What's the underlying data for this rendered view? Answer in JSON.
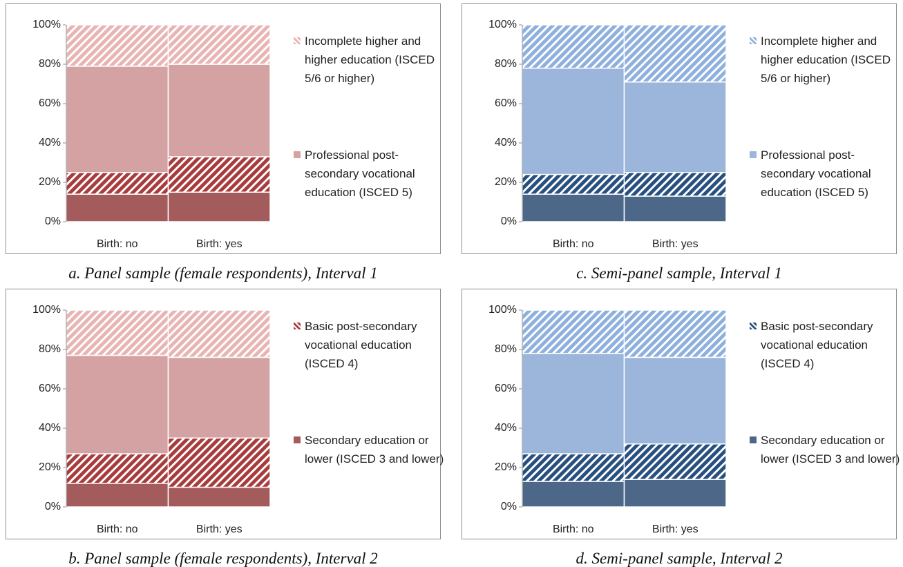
{
  "chart_data": [
    {
      "type": "bar",
      "stacked": true,
      "caption": "a. Panel sample (female respondents), Interval 1",
      "categories": [
        "Birth: no",
        "Birth: yes"
      ],
      "ylim": [
        0,
        100
      ],
      "yticks": [
        {
          "value": 0,
          "label": "0%"
        },
        {
          "value": 20,
          "label": "20%"
        },
        {
          "value": 40,
          "label": "40%"
        },
        {
          "value": 60,
          "label": "60%"
        },
        {
          "value": 80,
          "label": "80%"
        },
        {
          "value": 100,
          "label": "100%"
        }
      ],
      "grid": false,
      "series": [
        {
          "color": "#a35b5b",
          "hatch": false,
          "values": [
            14,
            15
          ]
        },
        {
          "color": "#a83c3c",
          "hatch": true,
          "values": [
            11,
            18
          ]
        },
        {
          "name": "Professional post-secondary vocational education (ISCED 5)",
          "color": "#d4a2a2",
          "hatch": false,
          "values": [
            54,
            47
          ]
        },
        {
          "name": "Incomplete higher and higher education (ISCED 5/6 or higher)",
          "color": "#e8b4b4",
          "hatch": true,
          "values": [
            21,
            20
          ]
        }
      ]
    },
    {
      "type": "bar",
      "stacked": true,
      "caption": "b. Panel sample (female respondents), Interval 2",
      "categories": [
        "Birth: no",
        "Birth: yes"
      ],
      "ylim": [
        0,
        100
      ],
      "yticks": [
        {
          "value": 0,
          "label": "0%"
        },
        {
          "value": 20,
          "label": "20%"
        },
        {
          "value": 40,
          "label": "40%"
        },
        {
          "value": 60,
          "label": "60%"
        },
        {
          "value": 80,
          "label": "80%"
        },
        {
          "value": 100,
          "label": "100%"
        }
      ],
      "grid": false,
      "series": [
        {
          "name": "Secondary education or lower (ISCED 3 and lower)",
          "color": "#a35b5b",
          "hatch": false,
          "values": [
            12,
            10
          ]
        },
        {
          "name": "Basic post-secondary vocational education (ISCED 4)",
          "color": "#a83c3c",
          "hatch": true,
          "values": [
            15,
            25
          ]
        },
        {
          "color": "#d4a2a2",
          "hatch": false,
          "values": [
            50,
            41
          ]
        },
        {
          "color": "#e8b4b4",
          "hatch": true,
          "values": [
            23,
            24
          ]
        }
      ]
    },
    {
      "type": "bar",
      "stacked": true,
      "caption": "c. Semi-panel sample, Interval 1",
      "categories": [
        "Birth: no",
        "Birth: yes"
      ],
      "ylim": [
        0,
        100
      ],
      "yticks": [
        {
          "value": 0,
          "label": "0%"
        },
        {
          "value": 20,
          "label": "20%"
        },
        {
          "value": 40,
          "label": "40%"
        },
        {
          "value": 60,
          "label": "60%"
        },
        {
          "value": 80,
          "label": "80%"
        },
        {
          "value": 100,
          "label": "100%"
        }
      ],
      "grid": false,
      "series": [
        {
          "color": "#4d6789",
          "hatch": false,
          "values": [
            14,
            13
          ]
        },
        {
          "color": "#274f80",
          "hatch": true,
          "values": [
            10,
            12
          ]
        },
        {
          "name": "Professional post-secondary vocational education (ISCED 5)",
          "color": "#9bb6da",
          "hatch": false,
          "values": [
            54,
            46
          ]
        },
        {
          "name": "Incomplete higher and higher education (ISCED 5/6 or higher)",
          "color": "#8eb0de",
          "hatch": true,
          "values": [
            22,
            29
          ]
        }
      ]
    },
    {
      "type": "bar",
      "stacked": true,
      "caption": "d. Semi-panel sample, Interval 2",
      "categories": [
        "Birth: no",
        "Birth: yes"
      ],
      "ylim": [
        0,
        100
      ],
      "yticks": [
        {
          "value": 0,
          "label": "0%"
        },
        {
          "value": 20,
          "label": "20%"
        },
        {
          "value": 40,
          "label": "40%"
        },
        {
          "value": 60,
          "label": "60%"
        },
        {
          "value": 80,
          "label": "80%"
        },
        {
          "value": 100,
          "label": "100%"
        }
      ],
      "grid": false,
      "series": [
        {
          "name": "Secondary education or lower (ISCED 3 and lower)",
          "color": "#4d6789",
          "hatch": false,
          "values": [
            13,
            14
          ]
        },
        {
          "name": "Basic post-secondary vocational education (ISCED 4)",
          "color": "#274f80",
          "hatch": true,
          "values": [
            14,
            18
          ]
        },
        {
          "color": "#9bb6da",
          "hatch": false,
          "values": [
            51,
            44
          ]
        },
        {
          "color": "#8eb0de",
          "hatch": true,
          "values": [
            22,
            24
          ]
        }
      ]
    }
  ]
}
